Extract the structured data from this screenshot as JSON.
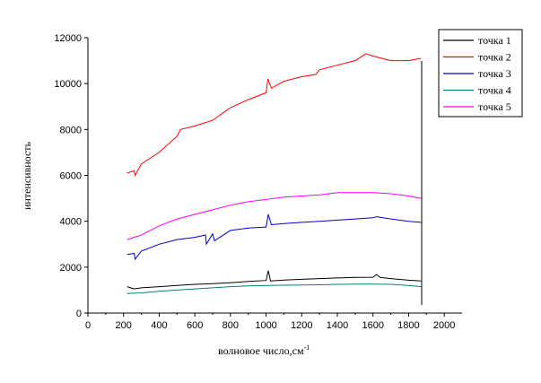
{
  "chart_data": {
    "type": "line",
    "xlabel": "волновое число,см",
    "xlabel_sup": "-1",
    "ylabel": "интенсивность",
    "xlim": [
      0,
      2100
    ],
    "ylim": [
      0,
      12000
    ],
    "xticks": [
      0,
      200,
      400,
      600,
      800,
      1000,
      1200,
      1400,
      1600,
      1800,
      2000
    ],
    "yticks": [
      0,
      2000,
      4000,
      6000,
      8000,
      10000,
      12000
    ],
    "legend_position": "top-right",
    "series": [
      {
        "name": "точка 1",
        "color": "#000000",
        "x": [
          220,
          260,
          300,
          400,
          500,
          600,
          700,
          800,
          900,
          1000,
          1012,
          1025,
          1100,
          1200,
          1300,
          1400,
          1500,
          1600,
          1620,
          1640,
          1700,
          1800,
          1870
        ],
        "y": [
          1150,
          1050,
          1100,
          1150,
          1200,
          1250,
          1280,
          1320,
          1380,
          1420,
          1850,
          1400,
          1440,
          1470,
          1500,
          1530,
          1550,
          1560,
          1680,
          1550,
          1500,
          1430,
          1400
        ]
      },
      {
        "name": "точка 2",
        "color": "#ff0000",
        "x": [
          220,
          260,
          265,
          300,
          400,
          500,
          520,
          600,
          700,
          800,
          900,
          1000,
          1010,
          1030,
          1100,
          1200,
          1280,
          1300,
          1400,
          1500,
          1560,
          1600,
          1700,
          1800,
          1870
        ],
        "y": [
          6100,
          6200,
          6000,
          6500,
          7000,
          7700,
          8000,
          8150,
          8400,
          8950,
          9300,
          9600,
          10200,
          9800,
          10100,
          10300,
          10400,
          10600,
          10800,
          11000,
          11300,
          11200,
          11000,
          11000,
          11100
        ]
      },
      {
        "name": "точка 3",
        "color": "#0000cc",
        "x": [
          220,
          260,
          265,
          300,
          400,
          500,
          600,
          660,
          665,
          700,
          710,
          800,
          900,
          1000,
          1012,
          1030,
          1100,
          1200,
          1300,
          1400,
          1500,
          1600,
          1620,
          1700,
          1800,
          1870
        ],
        "y": [
          2550,
          2600,
          2350,
          2700,
          3000,
          3200,
          3300,
          3400,
          3000,
          3450,
          3150,
          3600,
          3700,
          3750,
          4300,
          3850,
          3900,
          3950,
          4000,
          4050,
          4100,
          4150,
          4200,
          4100,
          4000,
          3950
        ]
      },
      {
        "name": "точка 4",
        "color": "#008080",
        "x": [
          220,
          300,
          400,
          500,
          600,
          700,
          800,
          900,
          1000,
          1100,
          1200,
          1300,
          1400,
          1500,
          1600,
          1700,
          1800,
          1870
        ],
        "y": [
          850,
          880,
          950,
          1000,
          1050,
          1100,
          1150,
          1180,
          1200,
          1210,
          1220,
          1230,
          1250,
          1260,
          1260,
          1250,
          1200,
          1150
        ]
      },
      {
        "name": "точка 5",
        "color": "#ff00ff",
        "x": [
          220,
          300,
          400,
          500,
          600,
          700,
          800,
          900,
          1000,
          1100,
          1200,
          1300,
          1400,
          1500,
          1600,
          1700,
          1800,
          1870
        ],
        "y": [
          3200,
          3400,
          3800,
          4100,
          4300,
          4500,
          4700,
          4850,
          4950,
          5050,
          5100,
          5150,
          5250,
          5250,
          5250,
          5200,
          5100,
          5000
        ]
      }
    ]
  }
}
